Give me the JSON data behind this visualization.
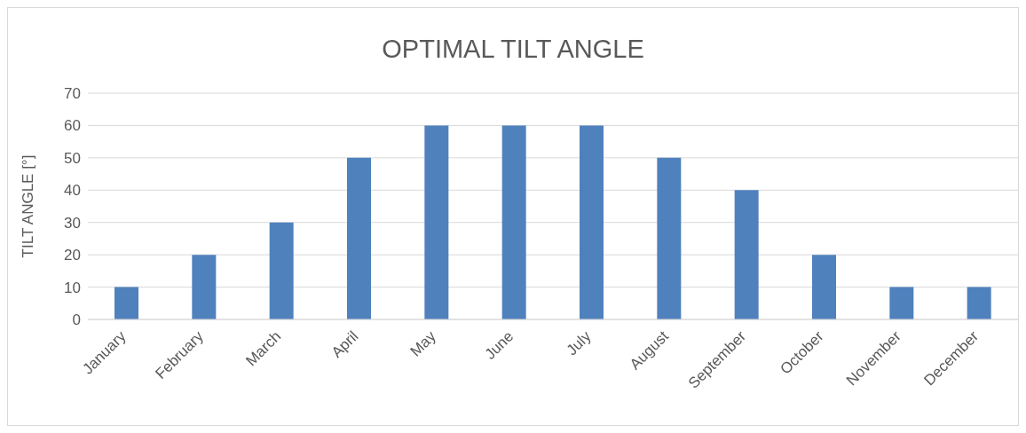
{
  "chart_data": {
    "type": "bar",
    "title": "OPTIMAL TILT ANGLE",
    "ylabel": "TILT ANGLE [°]",
    "categories": [
      "January",
      "February",
      "March",
      "April",
      "May",
      "June",
      "July",
      "August",
      "September",
      "October",
      "November",
      "December"
    ],
    "values": [
      10,
      20,
      30,
      50,
      60,
      60,
      60,
      50,
      40,
      20,
      10,
      10
    ],
    "color": "#4f81bd",
    "ylim": [
      0,
      70
    ],
    "yticks": [
      0,
      10,
      20,
      30,
      40,
      50,
      60,
      70
    ],
    "grid": "y",
    "legend": false
  }
}
